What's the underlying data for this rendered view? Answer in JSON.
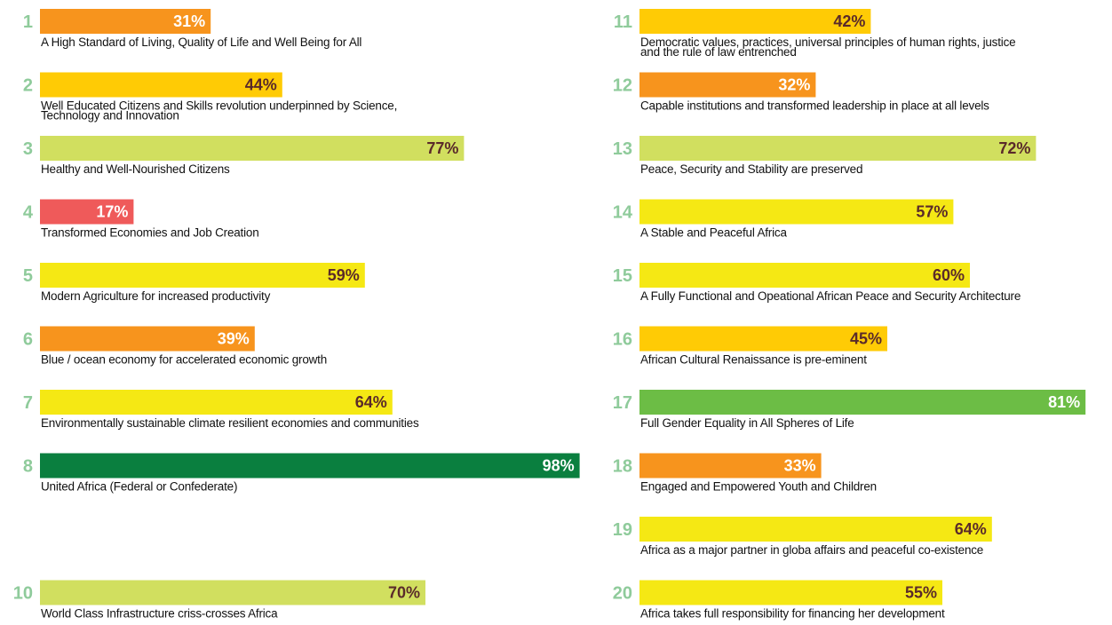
{
  "chart_data": {
    "type": "bar",
    "xlim": [
      0,
      100
    ],
    "goals": [
      {
        "number": 1,
        "label": [
          "A High Standard of Living, Quality of Life and Well Being for All"
        ],
        "value": 31,
        "value_label": "31%",
        "color": "#f7941d",
        "text_color": "#ffffff"
      },
      {
        "number": 2,
        "label": [
          "Well Educated Citizens and Skills revolution underpinned by Science,",
          "Technology and Innovation"
        ],
        "value": 44,
        "value_label": "44%",
        "color": "#ffcb05",
        "text_color": "#5a2a2a"
      },
      {
        "number": 3,
        "label": [
          "Healthy and Well-Nourished Citizens"
        ],
        "value": 77,
        "value_label": "77%",
        "color": "#d1df5f",
        "text_color": "#5a2a2a"
      },
      {
        "number": 4,
        "label": [
          "Transformed Economies and Job Creation"
        ],
        "value": 17,
        "value_label": "17%",
        "color": "#ef5a5a",
        "text_color": "#ffffff"
      },
      {
        "number": 5,
        "label": [
          "Modern Agriculture for increased productivity"
        ],
        "value": 59,
        "value_label": "59%",
        "color": "#f5e814",
        "text_color": "#5a2a2a"
      },
      {
        "number": 6,
        "label": [
          "Blue / ocean economy for accelerated economic growth"
        ],
        "value": 39,
        "value_label": "39%",
        "color": "#f7941d",
        "text_color": "#ffffff"
      },
      {
        "number": 7,
        "label": [
          "Environmentally sustainable climate resilient economies and communities"
        ],
        "value": 64,
        "value_label": "64%",
        "color": "#f5e814",
        "text_color": "#5a2a2a"
      },
      {
        "number": 8,
        "label": [
          "United Africa (Federal or Confederate)"
        ],
        "value": 98,
        "value_label": "98%",
        "color": "#0a7f3f",
        "text_color": "#ffffff"
      },
      {
        "number": 10,
        "label": [
          "World Class Infrastructure criss-crosses Africa"
        ],
        "value": 70,
        "value_label": "70%",
        "color": "#d1df5f",
        "text_color": "#5a2a2a"
      },
      {
        "number": 11,
        "label": [
          "Democratic values, practices, universal principles of human rights, justice",
          "and the rule of law entrenched"
        ],
        "value": 42,
        "value_label": "42%",
        "color": "#ffcb05",
        "text_color": "#5a2a2a"
      },
      {
        "number": 12,
        "label": [
          "Capable institutions and transformed leadership in place at all levels"
        ],
        "value": 32,
        "value_label": "32%",
        "color": "#f7941d",
        "text_color": "#ffffff"
      },
      {
        "number": 13,
        "label": [
          "Peace, Security and Stability are preserved"
        ],
        "value": 72,
        "value_label": "72%",
        "color": "#d1df5f",
        "text_color": "#5a2a2a"
      },
      {
        "number": 14,
        "label": [
          "A Stable and Peaceful Africa"
        ],
        "value": 57,
        "value_label": "57%",
        "color": "#f5e814",
        "text_color": "#5a2a2a"
      },
      {
        "number": 15,
        "label": [
          "A Fully Functional and Opeational African Peace and Security Architecture"
        ],
        "value": 60,
        "value_label": "60%",
        "color": "#f5e814",
        "text_color": "#5a2a2a"
      },
      {
        "number": 16,
        "label": [
          "African Cultural Renaissance is pre-eminent"
        ],
        "value": 45,
        "value_label": "45%",
        "color": "#ffcb05",
        "text_color": "#5a2a2a"
      },
      {
        "number": 17,
        "label": [
          "Full Gender Equality in All Spheres of Life"
        ],
        "value": 81,
        "value_label": "81%",
        "color": "#6cbd45",
        "text_color": "#ffffff"
      },
      {
        "number": 18,
        "label": [
          "Engaged and Empowered Youth and Children"
        ],
        "value": 33,
        "value_label": "33%",
        "color": "#f7941d",
        "text_color": "#ffffff"
      },
      {
        "number": 19,
        "label": [
          "Africa as a major partner in globa affairs and peaceful co-existence"
        ],
        "value": 64,
        "value_label": "64%",
        "color": "#f5e814",
        "text_color": "#5a2a2a"
      },
      {
        "number": 20,
        "label": [
          "Africa takes full responsibility for financing her development"
        ],
        "value": 55,
        "value_label": "55%",
        "color": "#f5e814",
        "text_color": "#5a2a2a"
      }
    ]
  }
}
